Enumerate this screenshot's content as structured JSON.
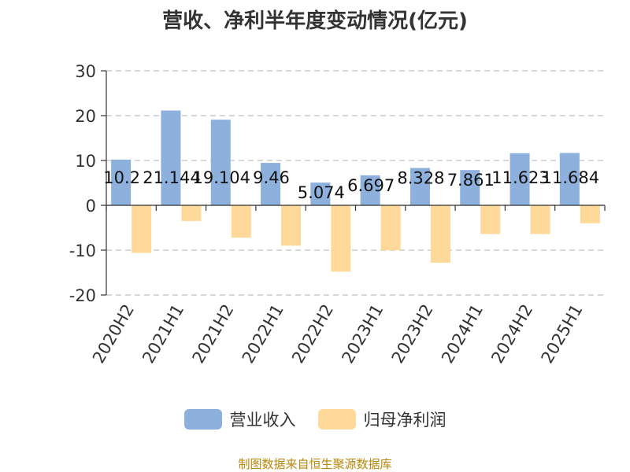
{
  "chart_data": {
    "type": "bar",
    "title": "营收、净利半年度变动情况(亿元)",
    "categories": [
      "2020H2",
      "2021H1",
      "2021H2",
      "2022H1",
      "2022H2",
      "2023H1",
      "2023H2",
      "2024H1",
      "2024H2",
      "2025H1"
    ],
    "series": [
      {
        "name": "营业收入",
        "color": "#8eb0dc",
        "values": [
          10.2,
          21.144,
          19.104,
          9.46,
          5.074,
          6.697,
          8.328,
          7.861,
          11.623,
          11.684
        ],
        "labels": [
          "10.2",
          "21.144",
          "19.104",
          "9.46",
          "5.074",
          "6.697",
          "8.328",
          "7.861",
          "11.623",
          "11.684"
        ]
      },
      {
        "name": "归母净利润",
        "color": "#ffd999",
        "values": [
          -10.6,
          -3.5,
          -7.2,
          -9.0,
          -14.8,
          -10.0,
          -12.8,
          -6.4,
          -6.4,
          -4.0
        ]
      }
    ],
    "yticks": [
      "30",
      "20",
      "10",
      "0",
      "-10",
      "-20"
    ],
    "ylim": [
      -20,
      30
    ],
    "grid": true,
    "legend": "bottom"
  },
  "source": "制图数据来自恒生聚源数据库"
}
